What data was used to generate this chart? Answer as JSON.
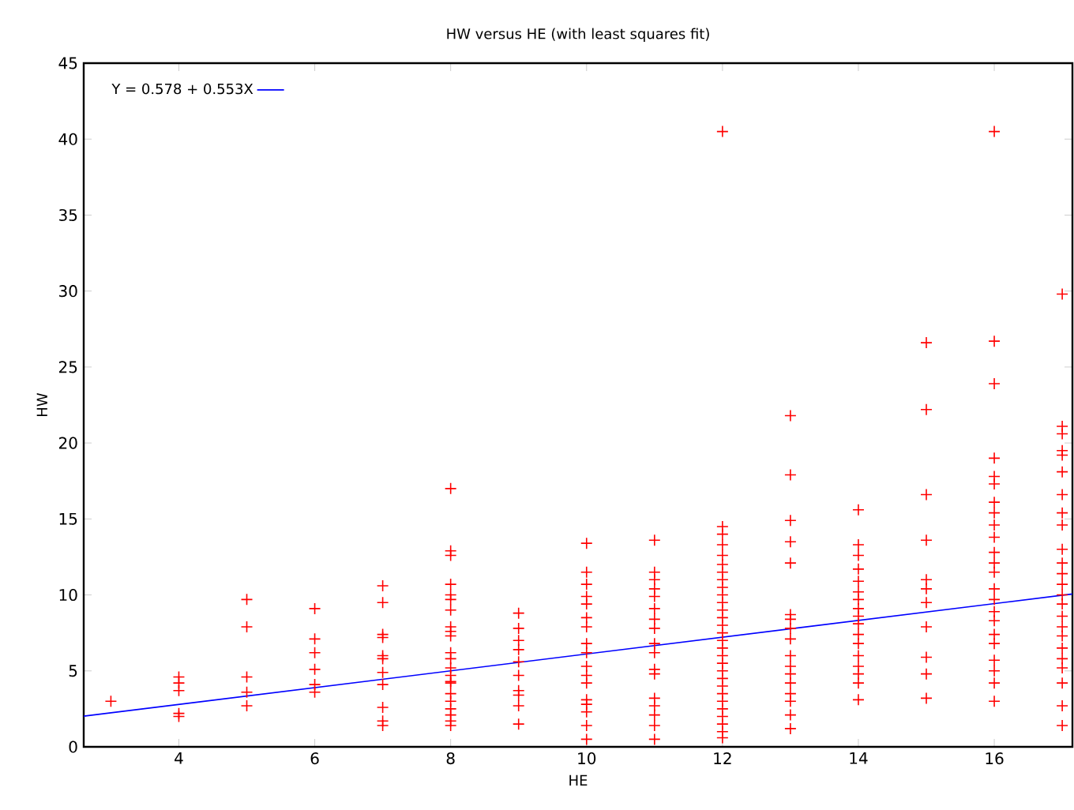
{
  "chart_data": {
    "type": "scatter",
    "title": "HW versus HE (with least squares fit)",
    "xlabel": "HE",
    "ylabel": "HW",
    "xlim": [
      2.6,
      17.15
    ],
    "ylim": [
      0,
      45
    ],
    "xticks": [
      4,
      6,
      8,
      10,
      12,
      14,
      16
    ],
    "yticks": [
      0,
      5,
      10,
      15,
      20,
      25,
      30,
      35,
      40,
      45
    ],
    "marker": "cross",
    "legend": "top left",
    "grid": false,
    "series": [
      {
        "color": "#ff0000",
        "x": [
          3
        ],
        "values": [
          3.0
        ]
      },
      {
        "color": "#ff0000",
        "x": [
          4,
          4,
          4,
          4,
          4
        ],
        "values": [
          4.6,
          4.2,
          3.7,
          2.2,
          2.0
        ]
      },
      {
        "color": "#ff0000",
        "x": [
          5,
          5,
          5,
          5,
          5
        ],
        "values": [
          9.7,
          7.9,
          4.6,
          3.6,
          2.7
        ]
      },
      {
        "color": "#ff0000",
        "x": [
          6,
          6,
          6,
          6,
          6,
          6
        ],
        "values": [
          9.1,
          7.1,
          6.2,
          5.1,
          4.1,
          3.6
        ]
      },
      {
        "color": "#ff0000",
        "x": [
          7,
          7,
          7,
          7,
          7,
          7,
          7,
          7,
          7,
          7,
          7
        ],
        "values": [
          10.6,
          9.5,
          7.4,
          7.2,
          6.0,
          5.8,
          4.9,
          4.1,
          2.6,
          1.7,
          1.4
        ]
      },
      {
        "color": "#ff0000",
        "x": [
          8,
          8,
          8,
          8,
          8,
          8,
          8,
          8,
          8,
          8,
          8,
          8,
          8,
          8,
          8,
          8,
          8,
          8,
          8,
          8,
          8,
          8
        ],
        "values": [
          17.0,
          12.9,
          12.6,
          10.7,
          10.0,
          9.7,
          9.0,
          7.9,
          7.6,
          7.3,
          6.2,
          5.8,
          5.2,
          4.7,
          4.3,
          4.2,
          3.5,
          3.0,
          2.5,
          2.1,
          1.7,
          1.4
        ]
      },
      {
        "color": "#ff0000",
        "x": [
          9,
          9,
          9,
          9,
          9,
          9,
          9,
          9,
          9,
          9
        ],
        "values": [
          8.8,
          7.8,
          7.0,
          6.4,
          5.6,
          4.7,
          3.7,
          3.4,
          2.7,
          1.5
        ]
      },
      {
        "color": "#ff0000",
        "x": [
          10,
          10,
          10,
          10,
          10,
          10,
          10,
          10,
          10,
          10,
          10,
          10,
          10,
          10,
          10,
          10,
          10
        ],
        "values": [
          13.4,
          11.5,
          10.7,
          9.9,
          9.4,
          8.5,
          7.9,
          6.8,
          6.2,
          5.3,
          4.7,
          4.2,
          3.1,
          2.8,
          2.3,
          1.4,
          0.5
        ]
      },
      {
        "color": "#ff0000",
        "x": [
          11,
          11,
          11,
          11,
          11,
          11,
          11,
          11,
          11,
          11,
          11,
          11,
          11,
          11,
          11,
          11,
          11
        ],
        "values": [
          13.6,
          11.5,
          11.0,
          10.4,
          9.9,
          9.1,
          8.4,
          7.8,
          6.8,
          6.2,
          5.1,
          4.8,
          3.2,
          2.7,
          2.1,
          1.4,
          0.5
        ]
      },
      {
        "color": "#ff0000",
        "x": [
          12,
          12,
          12,
          12,
          12,
          12,
          12,
          12,
          12,
          12,
          12,
          12,
          12,
          12,
          12,
          12,
          12,
          12,
          12,
          12,
          12,
          12,
          12,
          12,
          12,
          12,
          12,
          12,
          12
        ],
        "values": [
          40.5,
          14.5,
          14.0,
          13.3,
          12.6,
          12.0,
          11.5,
          11.0,
          10.5,
          10.0,
          9.5,
          9.0,
          8.5,
          8.0,
          7.5,
          7.0,
          6.5,
          6.0,
          5.5,
          5.0,
          4.5,
          4.0,
          3.5,
          3.0,
          2.5,
          2.0,
          1.5,
          1.0,
          0.6
        ]
      },
      {
        "color": "#ff0000",
        "x": [
          13,
          13,
          13,
          13,
          13,
          13,
          13,
          13,
          13,
          13,
          13,
          13,
          13,
          13,
          13,
          13,
          13
        ],
        "values": [
          21.8,
          17.9,
          14.9,
          13.5,
          12.1,
          8.7,
          8.4,
          7.8,
          7.1,
          6.0,
          5.3,
          4.8,
          4.2,
          3.5,
          3.0,
          2.1,
          1.2
        ]
      },
      {
        "color": "#ff0000",
        "x": [
          14,
          14,
          14,
          14,
          14,
          14,
          14,
          14,
          14,
          14,
          14,
          14,
          14,
          14,
          14,
          14,
          14
        ],
        "values": [
          15.6,
          13.3,
          12.6,
          11.7,
          10.9,
          10.2,
          9.7,
          9.1,
          8.6,
          8.1,
          7.4,
          6.8,
          6.0,
          5.3,
          4.8,
          4.2,
          3.1
        ]
      },
      {
        "color": "#ff0000",
        "x": [
          15,
          15,
          15,
          15,
          15,
          15,
          15,
          15,
          15,
          15,
          15
        ],
        "values": [
          26.6,
          22.2,
          16.6,
          13.6,
          11.0,
          10.4,
          9.5,
          7.9,
          5.9,
          4.8,
          3.2
        ]
      },
      {
        "color": "#ff0000",
        "x": [
          16,
          16,
          16,
          16,
          16,
          16,
          16,
          16,
          16,
          16,
          16,
          16,
          16,
          16,
          16,
          16,
          16,
          16,
          16,
          16,
          16,
          16,
          16
        ],
        "values": [
          40.5,
          26.7,
          23.9,
          19.0,
          17.8,
          17.3,
          16.1,
          15.4,
          14.6,
          13.8,
          12.8,
          12.1,
          11.5,
          10.4,
          9.7,
          8.9,
          8.3,
          7.4,
          6.8,
          5.7,
          5.0,
          4.2,
          3.0
        ]
      },
      {
        "color": "#ff0000",
        "x": [
          17,
          17,
          17,
          17,
          17,
          17,
          17,
          17,
          17,
          17,
          17,
          17,
          17,
          17,
          17,
          17,
          17,
          17,
          17,
          17,
          17,
          17,
          17,
          17
        ],
        "values": [
          29.8,
          21.1,
          20.6,
          19.5,
          19.2,
          18.1,
          16.6,
          15.4,
          14.6,
          13.0,
          12.1,
          11.4,
          10.7,
          10.0,
          9.4,
          8.6,
          7.9,
          7.3,
          6.5,
          5.8,
          5.2,
          4.2,
          2.7,
          1.4
        ]
      },
      {
        "type": "line",
        "name": "Y = 0.578 + 0.553X",
        "color": "#0000ff",
        "marker": "none",
        "x": [
          2.6,
          17.15
        ],
        "values": [
          2.02,
          10.06
        ]
      }
    ]
  }
}
